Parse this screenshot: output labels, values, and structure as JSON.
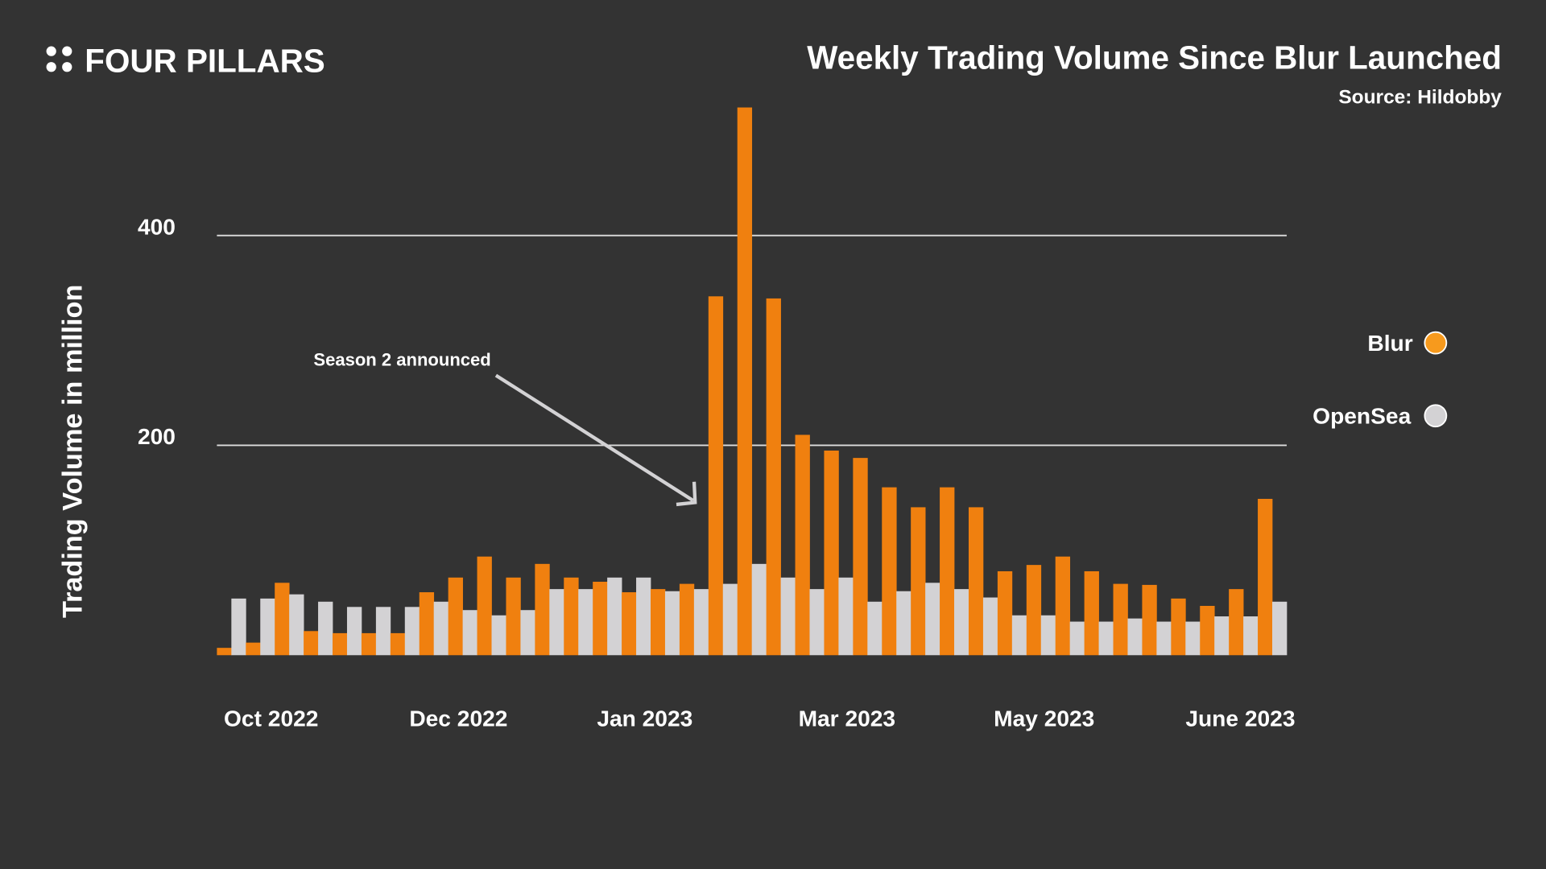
{
  "brand": {
    "name": "FOUR PILLARS"
  },
  "colors": {
    "background": "#333333",
    "blur": "#f0800f",
    "opensea": "#d3d2d4",
    "grid": "#dddddd",
    "text": "#ffffff",
    "legend_blur_dot": "#f79a1d"
  },
  "chart_data": {
    "type": "bar",
    "title": "Weekly Trading Volume Since Blur Launched",
    "subtitle": "Source: Hildobby",
    "xlabel": "",
    "ylabel": "Trading Volume in million",
    "ylim": [
      0,
      550
    ],
    "yticks": [
      200,
      400
    ],
    "grid": true,
    "legend_position": "right",
    "x_tick_labels": [
      "Oct 2022",
      "Dec 2022",
      "Jan 2023",
      "Mar 2023",
      "May 2023",
      "June 2023"
    ],
    "annotation": {
      "text": "Season 2 announced",
      "points_to_week": 18
    },
    "series": [
      {
        "name": "Blur",
        "values": [
          7,
          12,
          69,
          23,
          21,
          21,
          21,
          60,
          74,
          94,
          74,
          87,
          74,
          70,
          60,
          63,
          68,
          342,
          522,
          340,
          210,
          195,
          188,
          160,
          141,
          160,
          141,
          80,
          86,
          94,
          80,
          68,
          67,
          54,
          47,
          63,
          149
        ]
      },
      {
        "name": "OpenSea",
        "values": [
          54,
          54,
          58,
          51,
          46,
          46,
          46,
          51,
          43,
          38,
          43,
          63,
          63,
          74,
          74,
          61,
          63,
          68,
          87,
          74,
          63,
          74,
          51,
          61,
          69,
          63,
          55,
          38,
          38,
          32,
          32,
          35,
          32,
          32,
          37,
          37,
          51
        ]
      }
    ]
  }
}
